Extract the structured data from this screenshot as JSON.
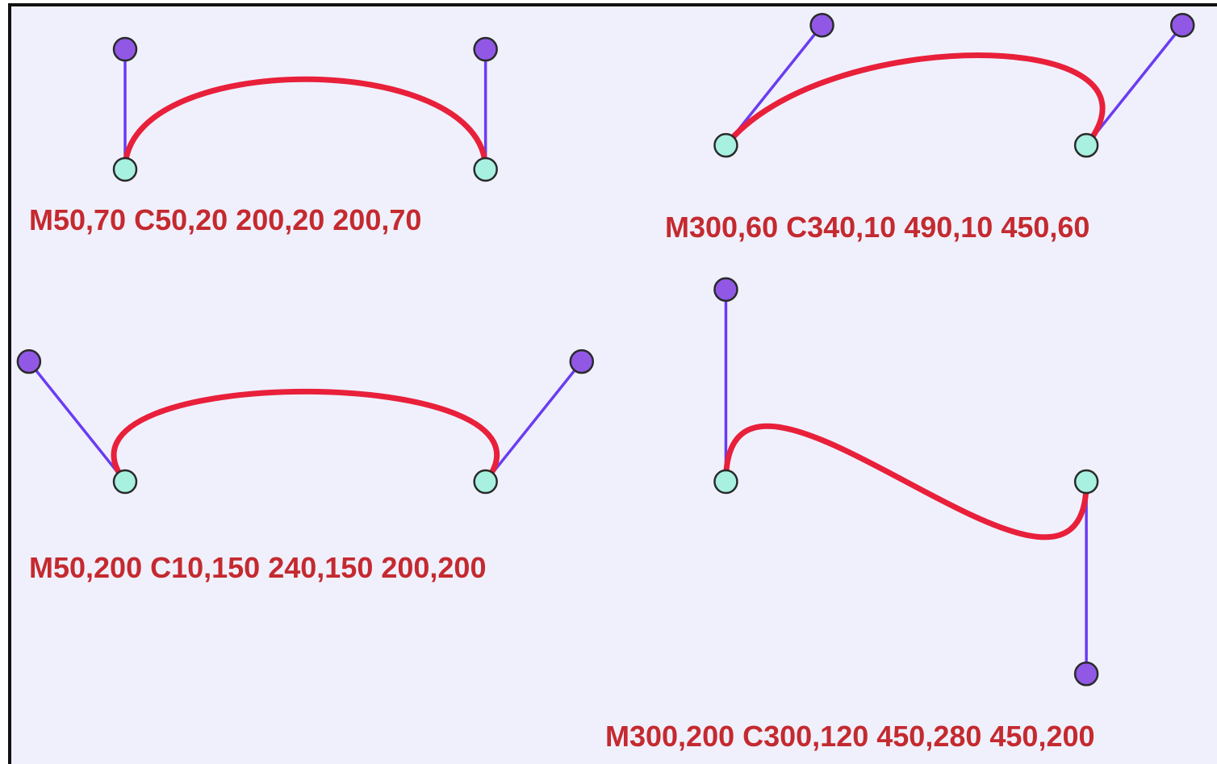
{
  "diagram": {
    "curves": [
      {
        "label": "M50,70 C50,20 200,20 200,70",
        "start": [
          50,
          70
        ],
        "control1": [
          50,
          20
        ],
        "control2": [
          200,
          20
        ],
        "end": [
          200,
          70
        ]
      },
      {
        "label": "M300,60 C340,10 490,10 450,60",
        "start": [
          300,
          60
        ],
        "control1": [
          340,
          10
        ],
        "control2": [
          490,
          10
        ],
        "end": [
          450,
          60
        ]
      },
      {
        "label": "M50,200 C10,150 240,150 200,200",
        "start": [
          50,
          200
        ],
        "control1": [
          10,
          150
        ],
        "control2": [
          240,
          150
        ],
        "end": [
          200,
          200
        ]
      },
      {
        "label": "M300,200 C300,120 450,280 450,200",
        "start": [
          300,
          200
        ],
        "control1": [
          300,
          120
        ],
        "control2": [
          450,
          280
        ],
        "end": [
          450,
          200
        ]
      }
    ],
    "colors": {
      "background": "#f0f0fd",
      "border": "#111111",
      "curve": "#e8203a",
      "handle_line": "#6a3cf2",
      "control_point": "#9158e6",
      "end_point": "#a8f0e0",
      "label_text": "#c42a2f"
    }
  }
}
